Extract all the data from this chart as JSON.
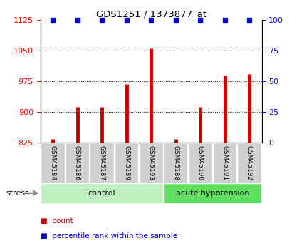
{
  "title": "GDS1251 / 1373877_at",
  "samples": [
    "GSM45184",
    "GSM45186",
    "GSM45187",
    "GSM45189",
    "GSM45193",
    "GSM45188",
    "GSM45190",
    "GSM45191",
    "GSM45192"
  ],
  "counts": [
    833,
    912,
    913,
    967,
    1054,
    833,
    913,
    988,
    993
  ],
  "percentile_ranks": [
    100,
    100,
    100,
    100,
    100,
    100,
    100,
    100,
    100
  ],
  "groups": [
    "control",
    "control",
    "control",
    "control",
    "control",
    "acute hypotension",
    "acute hypotension",
    "acute hypotension",
    "acute hypotension"
  ],
  "group_colors": {
    "control": "#c0f0c0",
    "acute hypotension": "#60e060"
  },
  "bar_color": "#cc0000",
  "dot_color": "#0000cc",
  "ylim_left": [
    825,
    1125
  ],
  "ylim_right": [
    0,
    100
  ],
  "yticks_left": [
    825,
    900,
    975,
    1050,
    1125
  ],
  "yticks_right": [
    0,
    25,
    50,
    75,
    100
  ],
  "grid_values": [
    900,
    975,
    1050
  ],
  "stress_label": "stress",
  "legend_count_label": "count",
  "legend_percentile_label": "percentile rank within the sample",
  "background_color": "#ffffff",
  "sample_bg_color": "#d0d0d0"
}
